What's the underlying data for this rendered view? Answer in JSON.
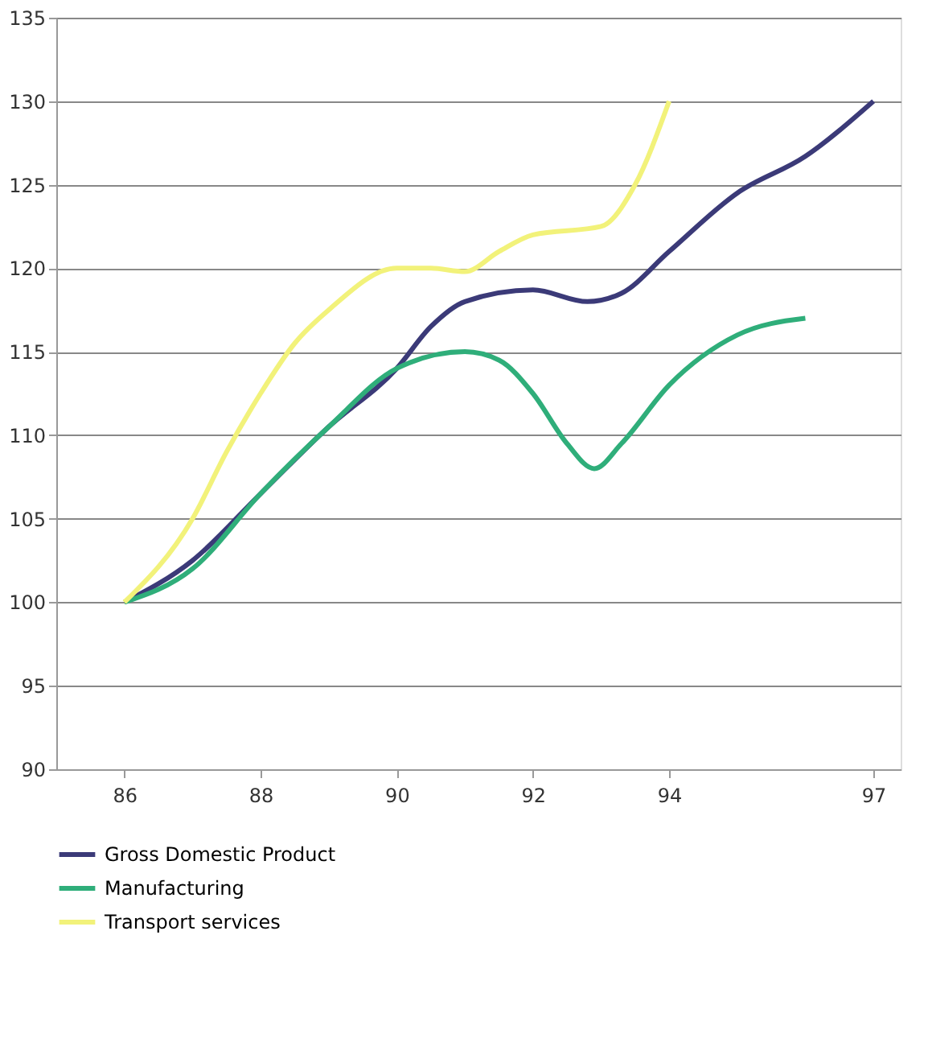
{
  "chart_data": {
    "type": "line",
    "xlim": [
      85,
      97.4
    ],
    "xticks": [
      86,
      88,
      90,
      92,
      94,
      97
    ],
    "ylim": [
      90,
      135
    ],
    "yticks": [
      90,
      95,
      100,
      105,
      110,
      115,
      120,
      125,
      130,
      135
    ],
    "grid": "y",
    "legend": "bottom",
    "marker": "none",
    "line_style": "solid",
    "series": [
      {
        "name": "Gross Domestic Product",
        "color": "#3b3a78",
        "x": [
          86,
          87,
          88,
          89,
          90,
          90.5,
          91,
          92,
          92.8,
          93.3,
          94,
          95,
          96,
          97
        ],
        "values": [
          100,
          102.5,
          106.5,
          110.5,
          114,
          116.5,
          118,
          118.7,
          118,
          118.5,
          121,
          124.5,
          126.7,
          130
        ]
      },
      {
        "name": "Manufacturing",
        "color": "#2fae7a",
        "x": [
          86,
          87,
          88,
          89,
          90,
          91,
          91.5,
          92,
          92.5,
          92.9,
          93.3,
          94,
          95,
          96
        ],
        "values": [
          100,
          102,
          106.5,
          110.5,
          114,
          115,
          114.5,
          112.5,
          109.5,
          108,
          109.5,
          113,
          116,
          117
        ]
      },
      {
        "name": "Transport services",
        "color": "#f2f27a",
        "x": [
          86,
          87,
          87.5,
          88,
          88.5,
          89,
          90,
          90.5,
          91,
          91.5,
          92,
          93,
          93.5,
          94
        ],
        "values": [
          100,
          105,
          109,
          112.5,
          115.5,
          117.5,
          120,
          120,
          119.8,
          121,
          122,
          122.5,
          125,
          130
        ]
      }
    ]
  }
}
